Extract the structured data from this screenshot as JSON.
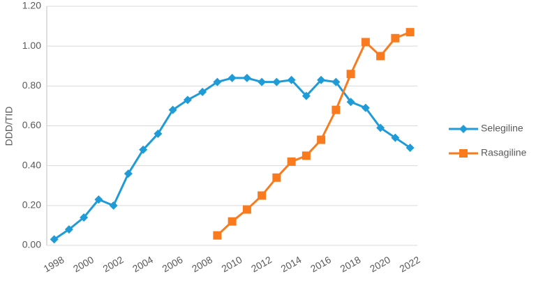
{
  "chart_data": {
    "type": "line",
    "y_label": "DDD/TID",
    "categories": [
      "1998",
      null,
      "2000",
      null,
      "2002",
      null,
      "2004",
      null,
      "2006",
      null,
      "2008",
      null,
      "2010",
      null,
      "2012",
      null,
      "2014",
      null,
      "2016",
      null,
      "2018",
      null,
      "2020",
      null,
      "2022"
    ],
    "series": [
      {
        "name": "Selegiline",
        "color": "#1f9bd7",
        "marker": "diamond",
        "values": [
          0.03,
          0.08,
          0.14,
          0.23,
          0.2,
          0.36,
          0.48,
          0.56,
          0.68,
          0.73,
          0.77,
          0.82,
          0.84,
          0.84,
          0.82,
          0.82,
          0.83,
          0.75,
          0.83,
          0.82,
          0.72,
          0.69,
          0.59,
          0.54,
          0.49
        ]
      },
      {
        "name": "Rasagiline",
        "color": "#f97b1e",
        "marker": "square",
        "values": [
          null,
          null,
          null,
          null,
          null,
          null,
          null,
          null,
          null,
          null,
          null,
          0.05,
          0.12,
          0.18,
          0.25,
          0.34,
          0.42,
          0.45,
          0.53,
          0.68,
          0.86,
          1.02,
          0.95,
          1.04,
          1.07
        ]
      }
    ],
    "ylim": [
      0,
      1.2
    ],
    "yticks": [
      {
        "value": 0,
        "label": "0.00"
      },
      {
        "value": 0.2,
        "label": "0.20"
      },
      {
        "value": 0.4,
        "label": "0.40"
      },
      {
        "value": 0.6,
        "label": "0.60"
      },
      {
        "value": 0.8,
        "label": "0.80"
      },
      {
        "value": 1.0,
        "label": "1.00"
      },
      {
        "value": 1.2,
        "label": "1.20"
      }
    ],
    "grid": true,
    "legend": "right"
  }
}
